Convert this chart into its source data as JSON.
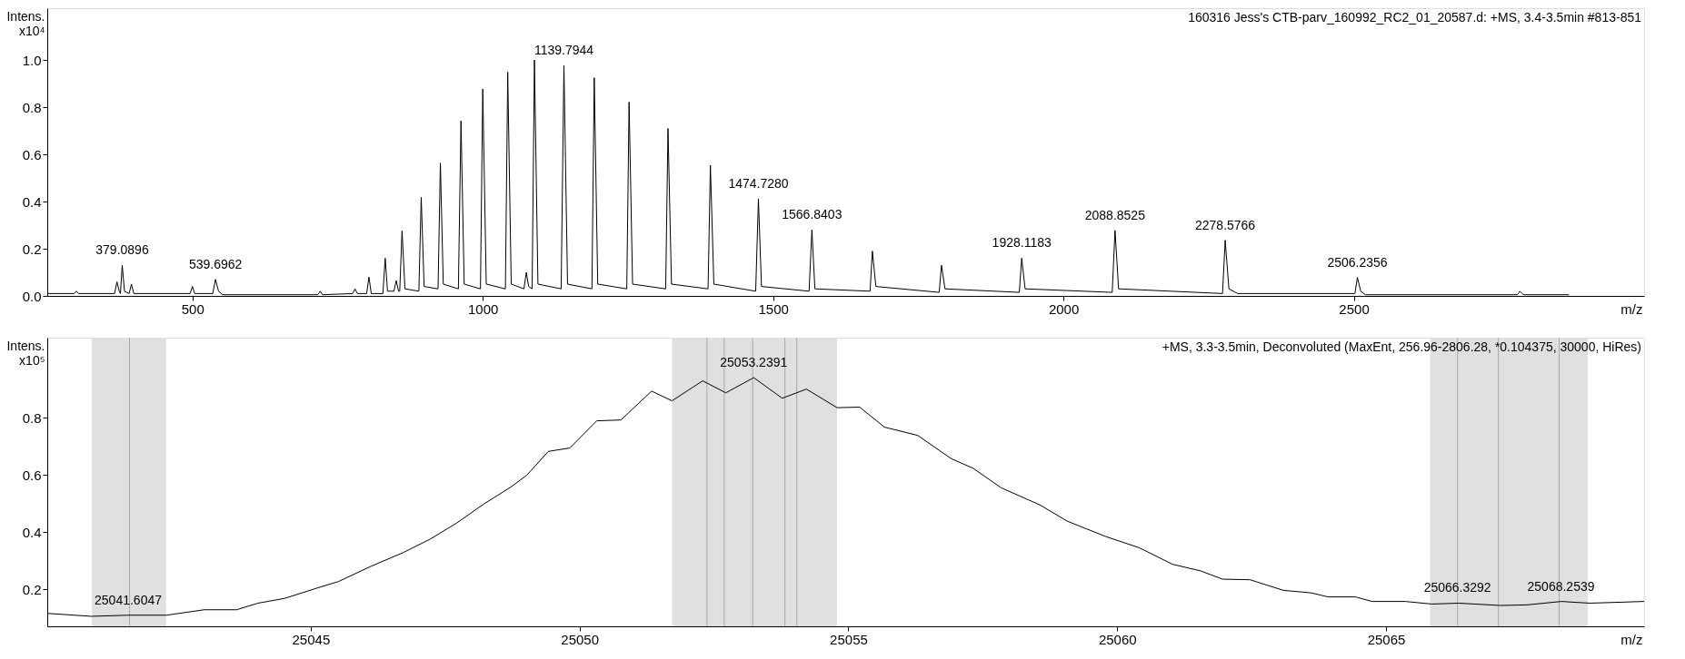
{
  "chart_data": [
    {
      "type": "line",
      "title": "160316 Jess's CTB-parv_160992_RC2_01_20587.d: +MS, 3.4-3.5min #813-851",
      "xlabel": "m/z",
      "ylabel": "Intens.\nx10⁴",
      "xlim": [
        250,
        3000
      ],
      "xticks": [
        500,
        1000,
        1500,
        2000,
        2500
      ],
      "ylim": [
        0,
        1.22
      ],
      "yticks": [
        {
          "value": 0,
          "label": "0.0"
        },
        0.2,
        0.4,
        0.6,
        0.8,
        {
          "value": 1,
          "label": "1.0"
        }
      ],
      "grid": false,
      "line_style": "solid",
      "marker": "none",
      "series": [
        {
          "color": "#000000",
          "x": [
            250,
            296,
            300,
            304,
            366,
            370,
            374,
            376,
            379.0896,
            383,
            391,
            395,
            399,
            496,
            500,
            504,
            535,
            539.6962,
            545,
            552,
            716,
            720,
            724,
            776,
            780,
            784,
            800,
            804,
            808,
            828,
            832,
            836,
            847,
            851,
            855,
            857,
            861,
            866,
            890,
            894,
            899,
            923,
            927,
            932,
            958,
            962.5,
            968,
            996,
            1000,
            1006,
            1039,
            1043,
            1049,
            1071,
            1075,
            1079,
            1085,
            1089,
            1095,
            1135,
            1139.7944,
            1146,
            1188,
            1192,
            1198,
            1248,
            1252,
            1258,
            1315,
            1319,
            1325,
            1388,
            1392,
            1398,
            1470,
            1474.728,
            1480,
            1562,
            1566.8403,
            1572,
            1667,
            1671,
            1677,
            1786,
            1790,
            1796,
            1924,
            1928.1183,
            1934,
            2084,
            2088.8525,
            2095,
            2274,
            2278.5766,
            2285,
            2300,
            2502,
            2506.2356,
            2512,
            2520,
            2782,
            2786,
            2792,
            2870
          ],
          "values": [
            0.01,
            0.01,
            0.02,
            0.01,
            0.01,
            0.06,
            0.02,
            0.01,
            0.13,
            0.02,
            0.01,
            0.05,
            0.01,
            0.01,
            0.04,
            0.01,
            0.01,
            0.07,
            0.02,
            0.005,
            0.005,
            0.02,
            0.005,
            0.01,
            0.03,
            0.01,
            0.01,
            0.08,
            0.01,
            0.01,
            0.16,
            0.02,
            0.02,
            0.065,
            0.02,
            0.02,
            0.276,
            0.03,
            0.02,
            0.418,
            0.04,
            0.03,
            0.563,
            0.05,
            0.03,
            0.742,
            0.05,
            0.03,
            0.877,
            0.05,
            0.03,
            0.949,
            0.05,
            0.03,
            0.1,
            0.04,
            0.03,
            1.0,
            0.05,
            0.03,
            0.976,
            0.05,
            0.03,
            0.925,
            0.05,
            0.03,
            0.822,
            0.05,
            0.03,
            0.71,
            0.05,
            0.03,
            0.554,
            0.05,
            0.02,
            0.411,
            0.04,
            0.02,
            0.28,
            0.03,
            0.02,
            0.19,
            0.04,
            0.015,
            0.13,
            0.03,
            0.015,
            0.16,
            0.03,
            0.015,
            0.278,
            0.03,
            0.01,
            0.236,
            0.03,
            0.01,
            0.01,
            0.078,
            0.02,
            0.005,
            0.005,
            0.02,
            0.005,
            0.005
          ]
        }
      ],
      "annotations": [
        {
          "text": "379.0896",
          "x": 379.0896,
          "y": 0.13
        },
        {
          "text": "539.6962",
          "x": 539.6962,
          "y": 0.07
        },
        {
          "text": "1139.7944",
          "x": 1139.7944,
          "y": 0.976
        },
        {
          "text": "1474.7280",
          "x": 1474.728,
          "y": 0.411
        },
        {
          "text": "1566.8403",
          "x": 1566.8403,
          "y": 0.28
        },
        {
          "text": "1928.1183",
          "x": 1928.1183,
          "y": 0.16
        },
        {
          "text": "2088.8525",
          "x": 2088.8525,
          "y": 0.278
        },
        {
          "text": "2278.5766",
          "x": 2278.5766,
          "y": 0.236
        },
        {
          "text": "2506.2356",
          "x": 2506.2356,
          "y": 0.078
        }
      ]
    },
    {
      "type": "line",
      "title": "+MS, 3.3-3.5min, Deconvoluted (MaxEnt, 256.96-2806.28, *0.104375, 30000, HiRes)",
      "xlabel": "m/z",
      "ylabel": "Intens.\nx10⁵",
      "xlim": [
        25040.1,
        25069.8
      ],
      "xticks": [
        25045,
        25050,
        25055,
        25060,
        25065
      ],
      "ylim": [
        0.07,
        1.08
      ],
      "yticks": [
        0.2,
        0.4,
        0.6,
        0.8
      ],
      "grid": false,
      "line_style": "solid",
      "marker": "none",
      "series": [
        {
          "color": "#000000",
          "x": [
            25040.12,
            25040.92,
            25041.62,
            25042.32,
            25043.02,
            25043.62,
            25044.02,
            25044.52,
            25045.12,
            25045.52,
            25046.12,
            25046.72,
            25047.22,
            25047.72,
            25048.22,
            25048.72,
            25049.02,
            25049.42,
            25049.82,
            25050.32,
            25050.77,
            25051.34,
            25051.72,
            25052.29,
            25052.72,
            25053.24,
            25053.77,
            25054.22,
            25054.79,
            25055.21,
            25055.67,
            25056.29,
            25056.91,
            25057.32,
            25057.84,
            25058.56,
            25059.07,
            25059.79,
            25060.41,
            25061.03,
            25061.55,
            25061.96,
            25062.47,
            25063.09,
            25063.61,
            25063.92,
            25064.43,
            25064.74,
            25065.36,
            25065.85,
            25066.36,
            25067.12,
            25067.62,
            25068.26,
            25068.79,
            25069.8
          ],
          "values": [
            0.115,
            0.105,
            0.109,
            0.109,
            0.128,
            0.128,
            0.151,
            0.168,
            0.204,
            0.227,
            0.28,
            0.328,
            0.375,
            0.432,
            0.498,
            0.557,
            0.599,
            0.682,
            0.694,
            0.789,
            0.792,
            0.893,
            0.859,
            0.929,
            0.887,
            0.94,
            0.868,
            0.9,
            0.835,
            0.837,
            0.767,
            0.738,
            0.657,
            0.623,
            0.555,
            0.495,
            0.438,
            0.384,
            0.345,
            0.287,
            0.264,
            0.235,
            0.233,
            0.196,
            0.187,
            0.173,
            0.173,
            0.157,
            0.157,
            0.148,
            0.151,
            0.143,
            0.145,
            0.157,
            0.151,
            0.157
          ]
        }
      ],
      "bands": [
        {
          "axis": "x",
          "from": 25040.93,
          "to": 25042.31,
          "color": "#e0e0e0"
        },
        {
          "axis": "x",
          "from": 25051.72,
          "to": 25054.79,
          "color": "#e0e0e0"
        },
        {
          "axis": "x",
          "from": 25065.82,
          "to": 25068.75,
          "color": "#e0e0e0"
        }
      ],
      "ref_lines": [
        {
          "axis": "x",
          "value": 25041.63,
          "color": "#a8a8a8"
        },
        {
          "axis": "x",
          "value": 25052.37,
          "color": "#a8a8a8"
        },
        {
          "axis": "x",
          "value": 25052.69,
          "color": "#a8a8a8"
        },
        {
          "axis": "x",
          "value": 25053.22,
          "color": "#a8a8a8"
        },
        {
          "axis": "x",
          "value": 25053.82,
          "color": "#a8a8a8"
        },
        {
          "axis": "x",
          "value": 25054.04,
          "color": "#a8a8a8"
        },
        {
          "axis": "x",
          "value": 25066.33,
          "color": "#a8a8a8"
        },
        {
          "axis": "x",
          "value": 25067.09,
          "color": "#a8a8a8"
        },
        {
          "axis": "x",
          "value": 25068.22,
          "color": "#a8a8a8"
        }
      ],
      "annotations": [
        {
          "text": "25041.6047",
          "x": 25041.6047,
          "y": 0.109
        },
        {
          "text": "25053.2391",
          "x": 25053.2391,
          "y": 0.94
        },
        {
          "text": "25066.3292",
          "x": 25066.3292,
          "y": 0.151
        },
        {
          "text": "25068.2539",
          "x": 25068.2539,
          "y": 0.157
        }
      ]
    }
  ]
}
